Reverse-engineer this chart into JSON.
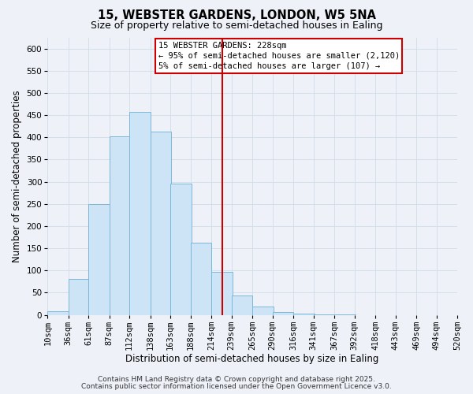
{
  "title": "15, WEBSTER GARDENS, LONDON, W5 5NA",
  "subtitle": "Size of property relative to semi-detached houses in Ealing",
  "xlabel": "Distribution of semi-detached houses by size in Ealing",
  "ylabel": "Number of semi-detached properties",
  "bin_labels": [
    "10sqm",
    "36sqm",
    "61sqm",
    "87sqm",
    "112sqm",
    "138sqm",
    "163sqm",
    "188sqm",
    "214sqm",
    "239sqm",
    "265sqm",
    "290sqm",
    "316sqm",
    "341sqm",
    "367sqm",
    "392sqm",
    "418sqm",
    "443sqm",
    "469sqm",
    "494sqm",
    "520sqm"
  ],
  "bin_edges": [
    10,
    36,
    61,
    87,
    112,
    138,
    163,
    188,
    214,
    239,
    265,
    290,
    316,
    341,
    367,
    392,
    418,
    443,
    469,
    494,
    520
  ],
  "bar_heights": [
    8,
    80,
    250,
    403,
    458,
    413,
    295,
    163,
    97,
    43,
    19,
    7,
    3,
    1,
    1,
    0,
    0,
    0,
    0,
    0
  ],
  "bar_facecolor": "#cce4f5",
  "bar_edgecolor": "#7ab8d9",
  "vline_x": 228,
  "vline_color": "#cc0000",
  "ylim": [
    0,
    625
  ],
  "yticks": [
    0,
    50,
    100,
    150,
    200,
    250,
    300,
    350,
    400,
    450,
    500,
    550,
    600
  ],
  "grid_color": "#d0dce8",
  "background_color": "#eef2f8",
  "annotation_title": "15 WEBSTER GARDENS: 228sqm",
  "annotation_line1": "← 95% of semi-detached houses are smaller (2,120)",
  "annotation_line2": "5% of semi-detached houses are larger (107) →",
  "annotation_box_facecolor": "#ffffff",
  "annotation_box_edgecolor": "#cc0000",
  "footer1": "Contains HM Land Registry data © Crown copyright and database right 2025.",
  "footer2": "Contains public sector information licensed under the Open Government Licence v3.0.",
  "title_fontsize": 10.5,
  "subtitle_fontsize": 9,
  "label_fontsize": 8.5,
  "tick_fontsize": 7.5,
  "annotation_fontsize": 7.5,
  "footer_fontsize": 6.5
}
